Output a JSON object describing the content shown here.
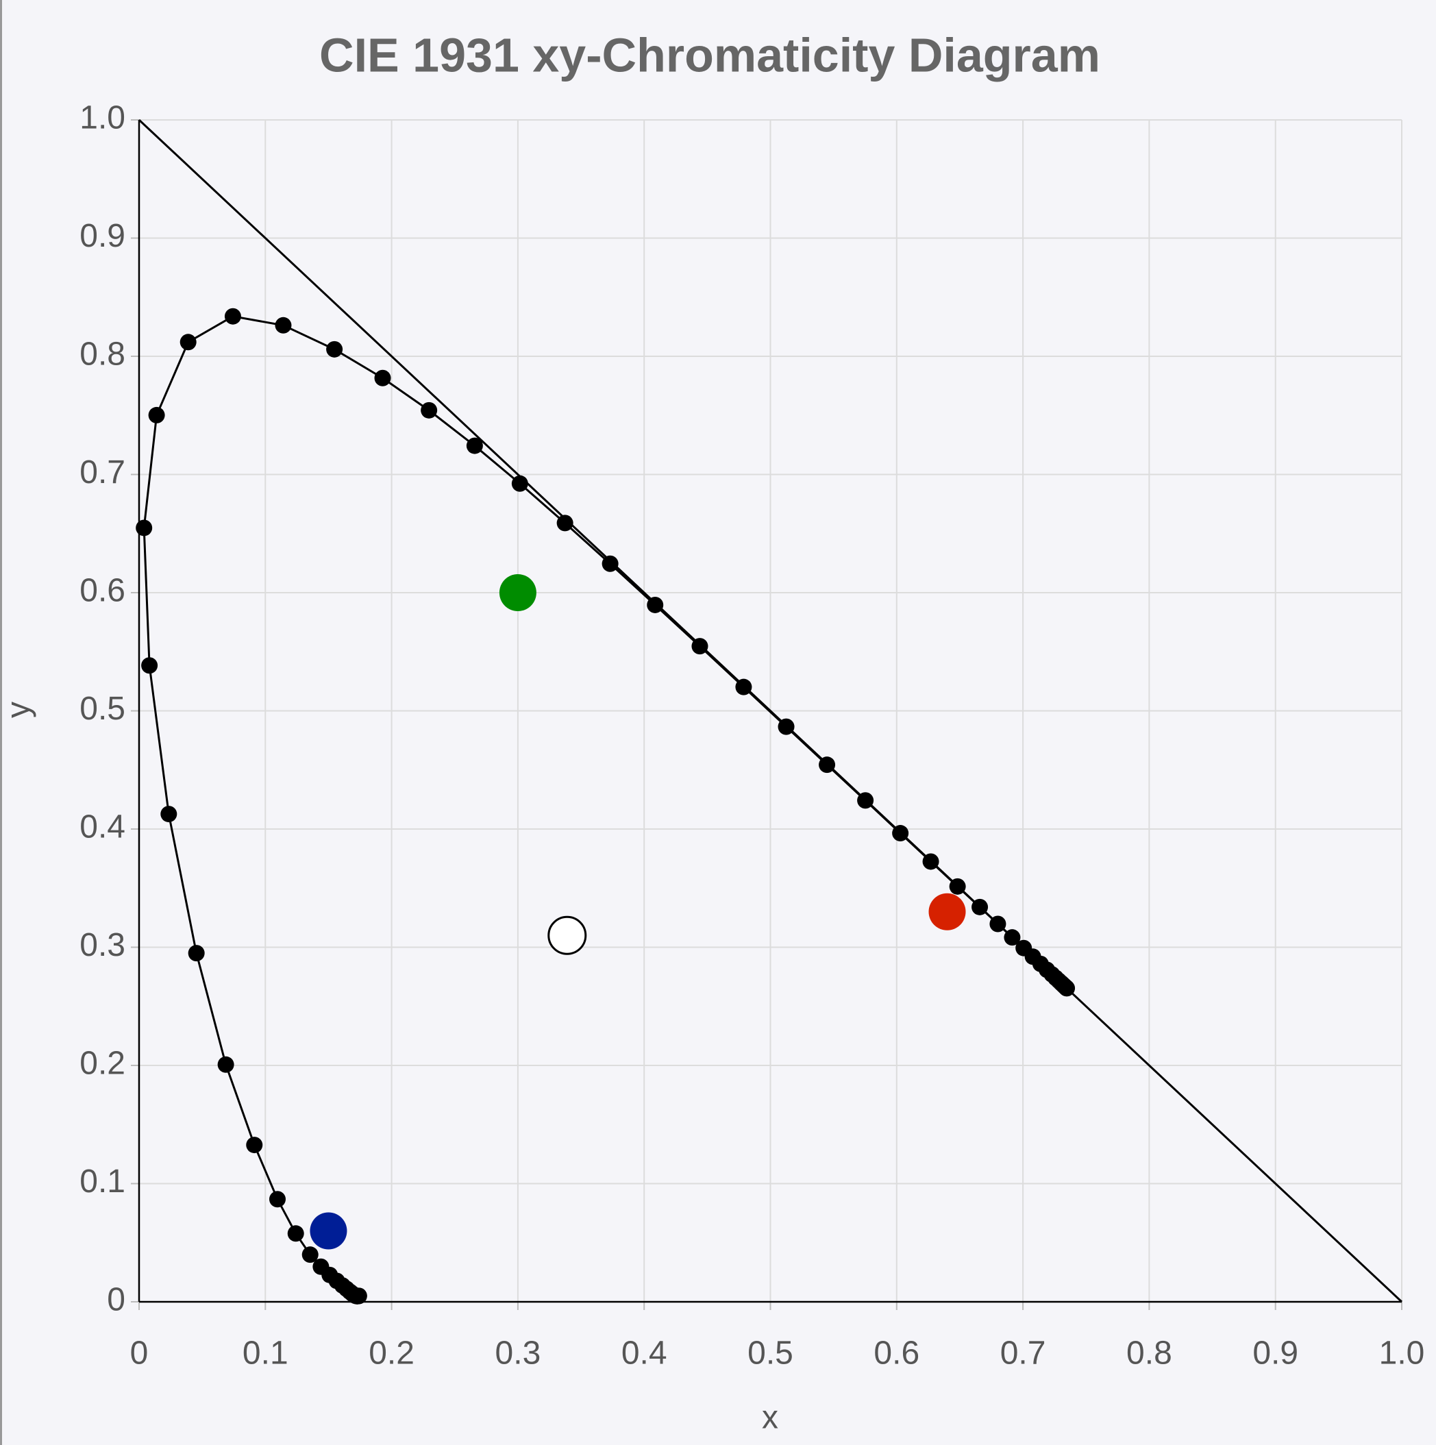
{
  "chart_data": {
    "type": "scatter",
    "title": "CIE 1931 xy-Chromaticity Diagram",
    "xlabel": "x",
    "ylabel": "y",
    "xlim": [
      0,
      1
    ],
    "ylim": [
      0,
      1
    ],
    "xticks": [
      0,
      0.1,
      0.2,
      0.3,
      0.4,
      0.5,
      0.6,
      0.7,
      0.8,
      0.9,
      {
        "value": 1,
        "label": "1.0"
      }
    ],
    "yticks": [
      0,
      0.1,
      0.2,
      0.3,
      0.4,
      0.5,
      0.6,
      0.7,
      0.8,
      0.9,
      {
        "value": 1,
        "label": "1.0"
      }
    ],
    "grid": true,
    "series": [
      {
        "mode": "lines",
        "color": "#000000",
        "x": [
          0,
          1
        ],
        "values": [
          1,
          0
        ]
      },
      {
        "mode": "lines+markers",
        "color": "#000000",
        "x": [
          0.1741,
          0.174,
          0.1738,
          0.1736,
          0.1733,
          0.173,
          0.1726,
          0.1721,
          0.1714,
          0.1703,
          0.1689,
          0.1669,
          0.1644,
          0.1611,
          0.1566,
          0.151,
          0.144,
          0.1355,
          0.1241,
          0.1096,
          0.0913,
          0.0687,
          0.0454,
          0.0235,
          0.0082,
          0.0039,
          0.0139,
          0.0389,
          0.0743,
          0.1142,
          0.1547,
          0.1929,
          0.2296,
          0.2658,
          0.3016,
          0.3373,
          0.3731,
          0.4087,
          0.4441,
          0.4788,
          0.5125,
          0.5448,
          0.5752,
          0.6029,
          0.627,
          0.6482,
          0.6658,
          0.6801,
          0.6915,
          0.7006,
          0.7079,
          0.714,
          0.719,
          0.723,
          0.726,
          0.7283,
          0.73,
          0.7311,
          0.732,
          0.7327,
          0.7334,
          0.734,
          0.7344,
          0.7346,
          0.7347
        ],
        "values": [
          0.005,
          0.005,
          0.0049,
          0.0049,
          0.0048,
          0.0048,
          0.0048,
          0.0048,
          0.0051,
          0.0058,
          0.0069,
          0.0086,
          0.0109,
          0.0138,
          0.0177,
          0.0227,
          0.0297,
          0.0399,
          0.0578,
          0.0868,
          0.1327,
          0.2007,
          0.295,
          0.4127,
          0.5384,
          0.6548,
          0.7502,
          0.812,
          0.8338,
          0.8262,
          0.8059,
          0.7816,
          0.7543,
          0.7243,
          0.6923,
          0.6589,
          0.6245,
          0.5896,
          0.5547,
          0.5202,
          0.4866,
          0.4544,
          0.4242,
          0.3965,
          0.3725,
          0.3514,
          0.334,
          0.3197,
          0.3083,
          0.2993,
          0.292,
          0.2859,
          0.2809,
          0.277,
          0.274,
          0.2717,
          0.27,
          0.2689,
          0.268,
          0.2673,
          0.2666,
          0.266,
          0.2656,
          0.2654,
          0.2653
        ]
      },
      {
        "mode": "markers",
        "color": "#d62100",
        "x": [
          0.64
        ],
        "values": [
          0.33
        ]
      },
      {
        "mode": "markers",
        "color": "#008c00",
        "x": [
          0.3
        ],
        "values": [
          0.6
        ]
      },
      {
        "mode": "markers",
        "color": "#001e96",
        "x": [
          0.15
        ],
        "values": [
          0.06
        ]
      },
      {
        "mode": "markers",
        "color": "#ffffff",
        "edgecolor": "#000000",
        "x": [
          0.339
        ],
        "values": [
          0.31
        ]
      }
    ]
  }
}
